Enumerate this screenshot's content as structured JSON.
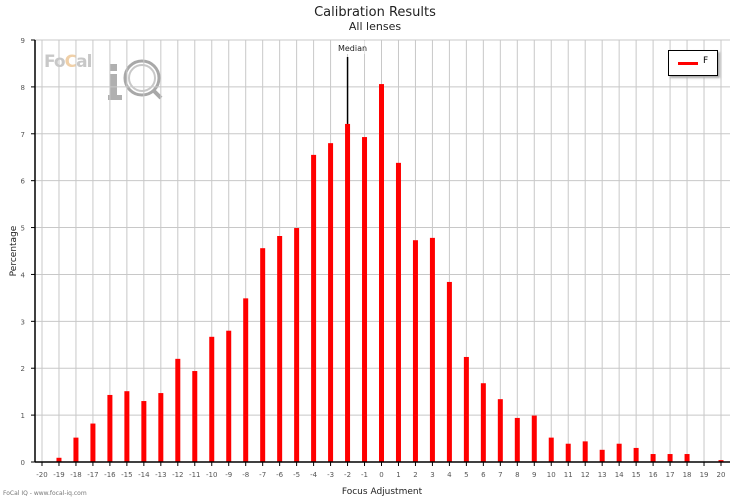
{
  "header": {
    "title": "Calibration Results",
    "subtitle": "All lenses"
  },
  "watermark": {
    "text_left": "Fo",
    "text_c": "C",
    "text_right": "al",
    "icon": "iq-magnifier-icon"
  },
  "legend": {
    "label": "F",
    "color": "#ff0000"
  },
  "median": {
    "label": "Median",
    "x": -2
  },
  "footer": {
    "text": "FoCal IQ - www.focal-iq.com"
  },
  "colors": {
    "bar": "#ff0000",
    "grid": "#c8c8c8",
    "axis": "#000000"
  },
  "chart_data": {
    "type": "bar",
    "title": "Calibration Results",
    "subtitle": "All lenses",
    "xlabel": "Focus Adjustment",
    "ylabel": "Percentage",
    "ylim": [
      0,
      9
    ],
    "xlim": [
      -20,
      20
    ],
    "grid": true,
    "legend_position": "top-right",
    "yticks": [
      0,
      1,
      2,
      3,
      4,
      5,
      6,
      7,
      8,
      9
    ],
    "categories": [
      -20,
      -19,
      -18,
      -17,
      -16,
      -15,
      -14,
      -13,
      -12,
      -11,
      -10,
      -9,
      -8,
      -7,
      -6,
      -5,
      -4,
      -3,
      -2,
      -1,
      0,
      1,
      2,
      3,
      4,
      5,
      6,
      7,
      8,
      9,
      10,
      11,
      12,
      13,
      14,
      15,
      16,
      17,
      18,
      19,
      20
    ],
    "series": [
      {
        "name": "F",
        "color": "#ff0000",
        "values": [
          0,
          0.09,
          0.52,
          0.82,
          1.43,
          1.51,
          1.3,
          1.47,
          2.2,
          1.94,
          2.67,
          2.8,
          3.49,
          4.56,
          4.82,
          4.99,
          6.55,
          6.8,
          7.21,
          6.93,
          8.06,
          6.38,
          4.73,
          4.78,
          3.84,
          2.24,
          1.68,
          1.34,
          0.94,
          0.99,
          0.52,
          0.39,
          0.44,
          0.26,
          0.39,
          0.3,
          0.17,
          0.17,
          0.17,
          0,
          0.04
        ]
      }
    ],
    "annotations": [
      {
        "type": "vertical-line",
        "x": -2,
        "label": "Median"
      }
    ]
  }
}
